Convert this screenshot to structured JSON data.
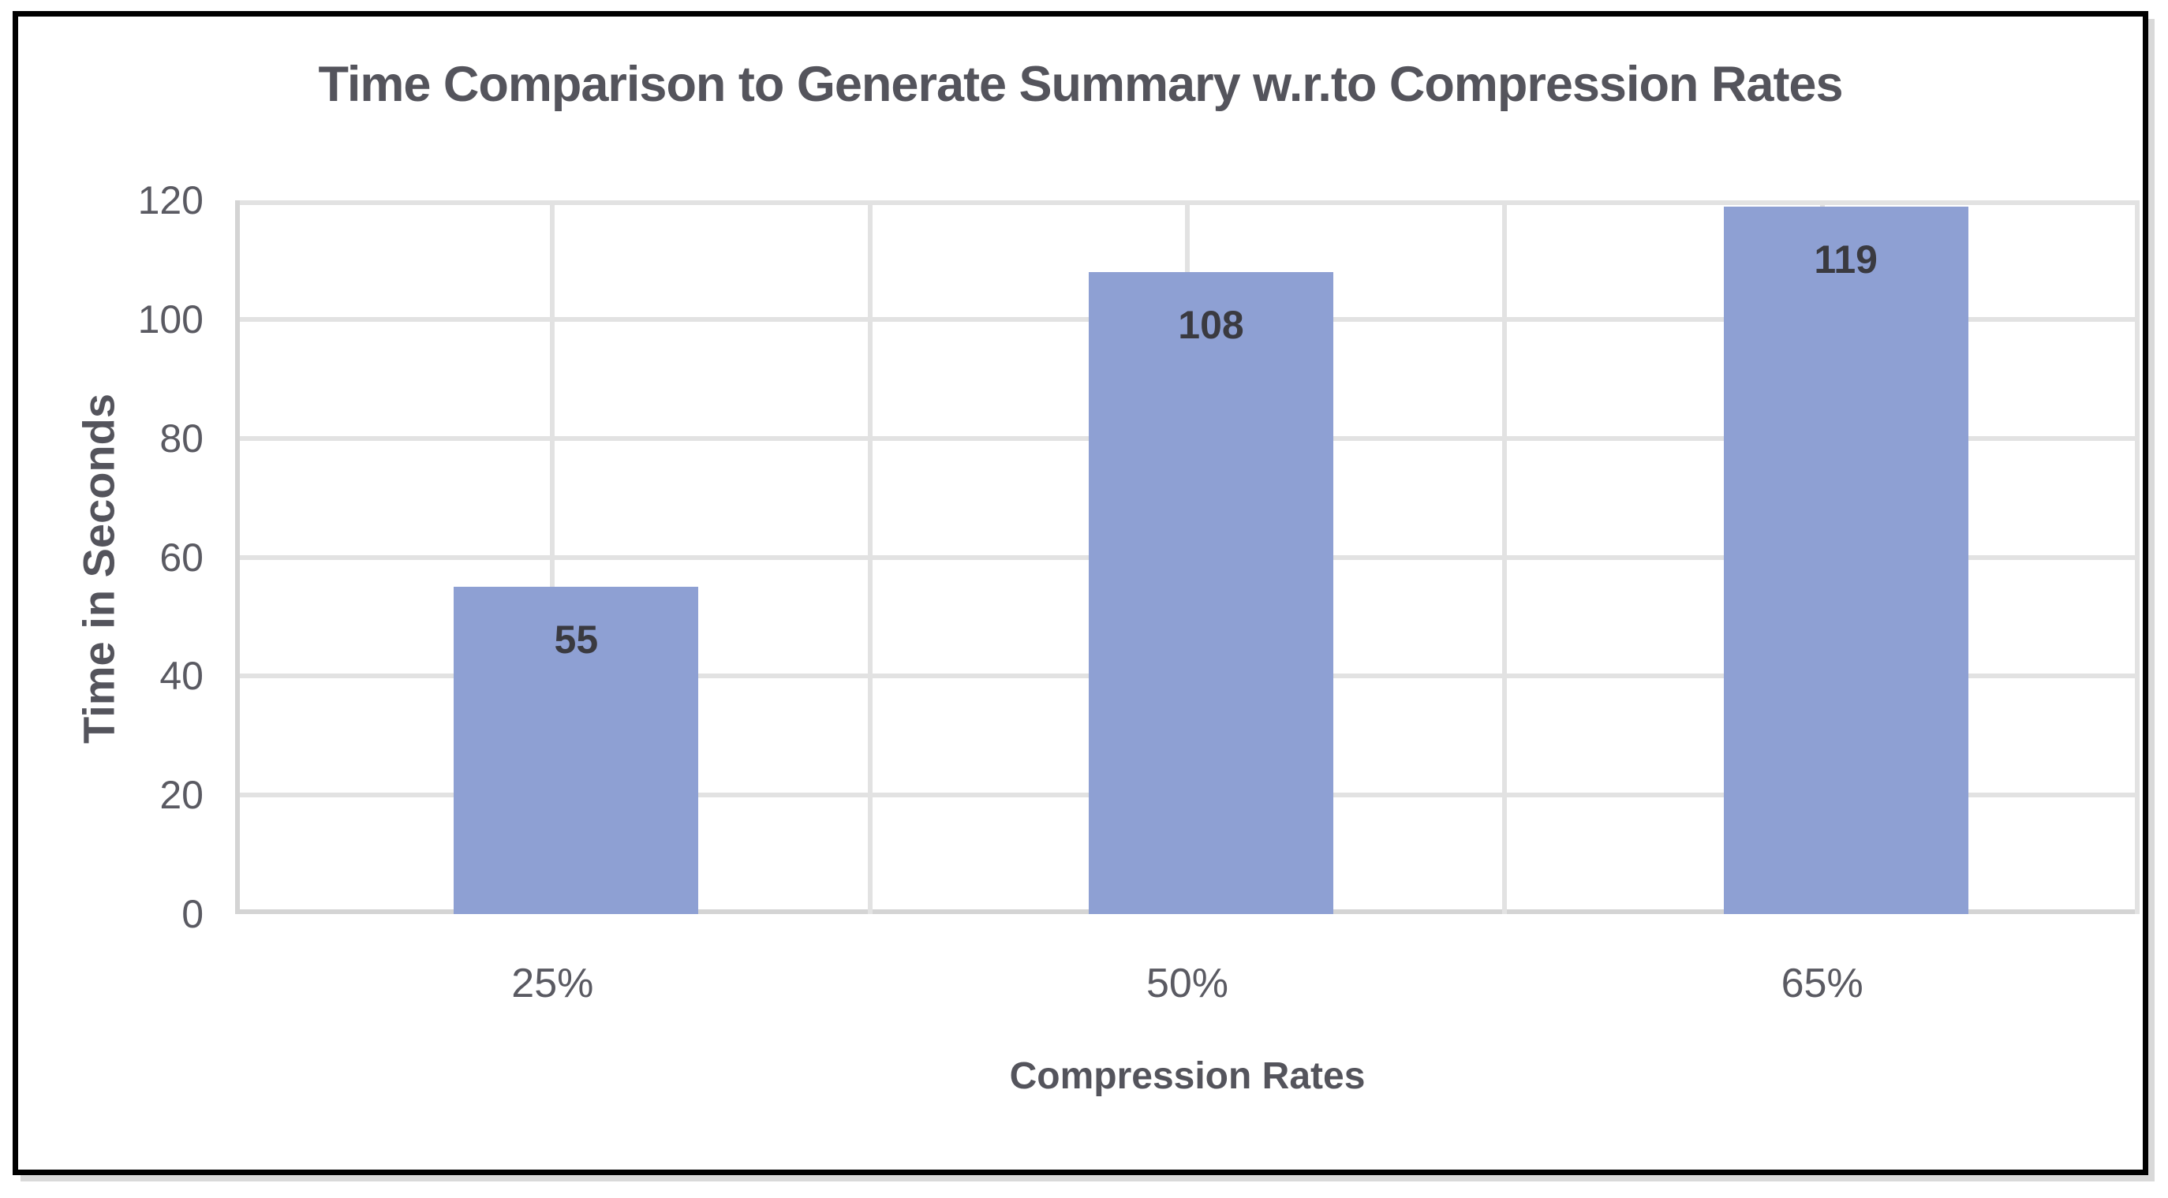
{
  "chart_data": {
    "type": "bar",
    "title": "Time Comparison to Generate Summary w.r.to Compression Rates",
    "categories": [
      "25%",
      "50%",
      "65%"
    ],
    "values": [
      55,
      108,
      119
    ],
    "xlabel": "Compression Rates",
    "ylabel": "Time in Seconds",
    "ylim": [
      0,
      120
    ],
    "yticks": [
      0,
      20,
      40,
      60,
      80,
      100,
      120
    ],
    "grid": true,
    "vertical_gridlines_per_category": 2,
    "legend_position": "none",
    "data_label_position": "inside-end",
    "colors": {
      "bar": "#8EA0D3",
      "gridline": "#E2E2E2",
      "axis_line": "#D4D4D4",
      "title_text": "#54545C",
      "axis_title_text": "#54545C",
      "tick_text": "#5A5A62",
      "data_label_text": "#3A3A40",
      "frame_border": "#000000",
      "frame_shadow": "#D9D9D9",
      "background": "#FFFFFF"
    }
  }
}
